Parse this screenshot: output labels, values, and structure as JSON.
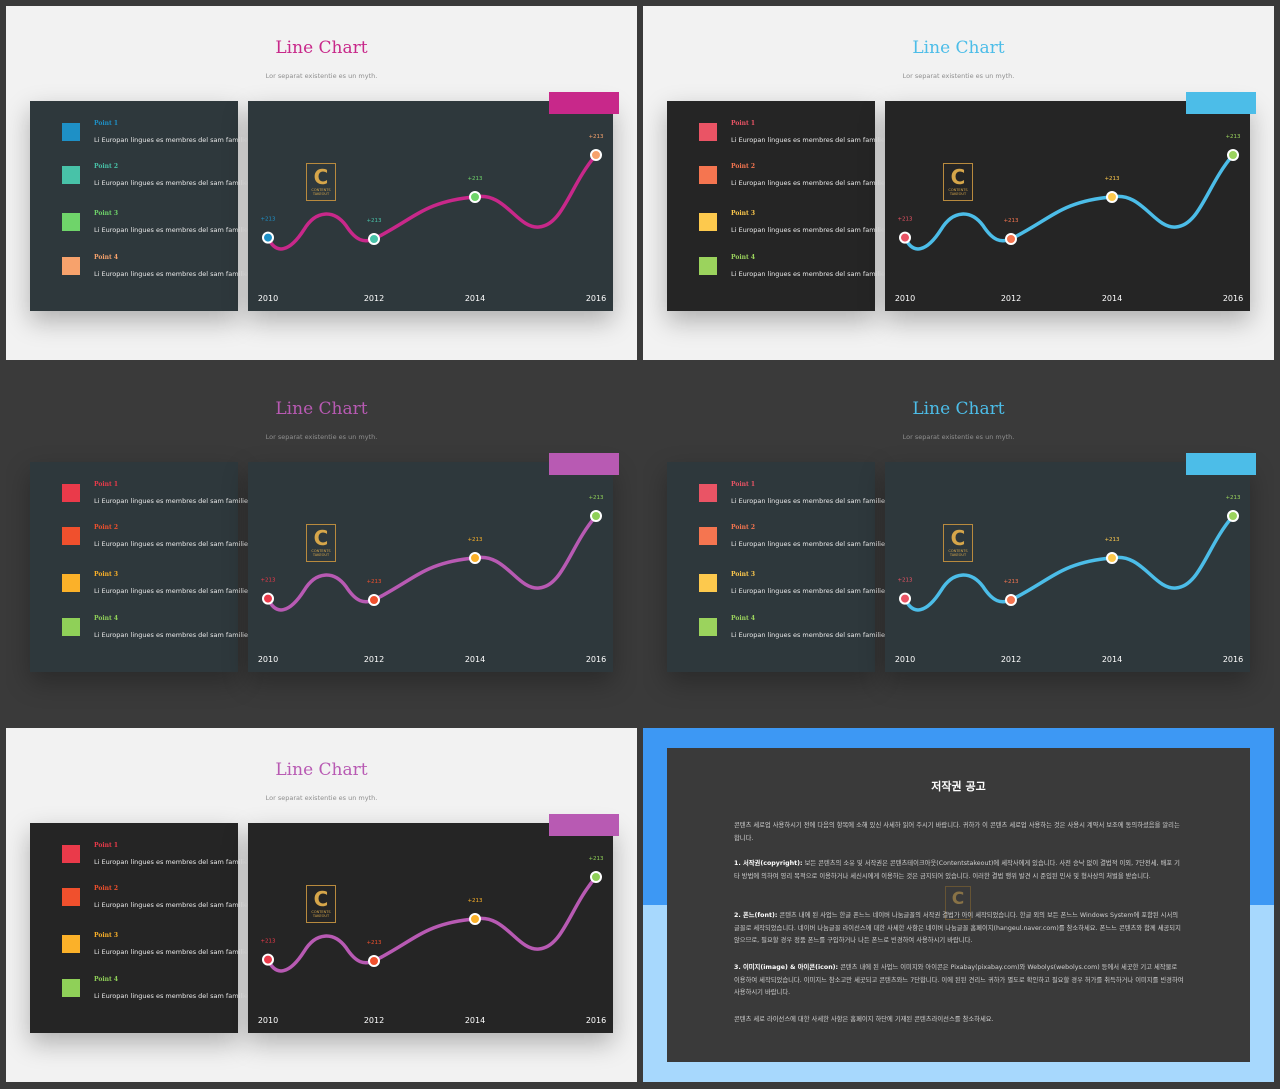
{
  "slides": [
    {
      "title": "Line Chart",
      "subtitle": "Lor separat existentie es un myth.",
      "theme": {
        "bg": "#f2f2f2",
        "left": "#2e383c",
        "chart": "#2e383c",
        "line": "#c8288a",
        "title": "#c8288a",
        "accent": "#c8288a",
        "year": "#ffffff"
      },
      "legend": [
        {
          "name": "Point 1",
          "desc": "Li Europan lingues es membres del sam familie.",
          "color": "#1e90c6"
        },
        {
          "name": "Point 2",
          "desc": "Li Europan lingues es membres del sam familie.",
          "color": "#48c2a8"
        },
        {
          "name": "Point 3",
          "desc": "Li Europan lingues es membres del sam familie.",
          "color": "#6fd46a"
        },
        {
          "name": "Point 4",
          "desc": "Li Europan lingues es membres del sam familie.",
          "color": "#f7a26c"
        }
      ],
      "chart_data": {
        "type": "line",
        "x": [
          "2010",
          "2012",
          "2014",
          "2016"
        ],
        "y": [
          31,
          30,
          60,
          90
        ],
        "labels": [
          "+213",
          "+213",
          "+213",
          "+213"
        ],
        "point_colors": [
          "#1e90c6",
          "#48c2a8",
          "#6fd46a",
          "#f7a26c"
        ],
        "ylim": [
          0,
          100
        ]
      },
      "logo": {
        "letter": "C",
        "text": "CONTENTS TAKEOUT"
      }
    },
    {
      "title": "Line Chart",
      "subtitle": "Lor separat existentie es un myth.",
      "theme": {
        "bg": "#f2f2f2",
        "left": "#252525",
        "chart": "#252525",
        "line": "#4cbde8",
        "title": "#4cbde8",
        "accent": "#4cbde8",
        "year": "#ffffff"
      },
      "legend": [
        {
          "name": "Point 1",
          "desc": "Li Europan lingues es membres del sam familie.",
          "color": "#ea5465"
        },
        {
          "name": "Point 2",
          "desc": "Li Europan lingues es membres del sam familie.",
          "color": "#f57550"
        },
        {
          "name": "Point 3",
          "desc": "Li Europan lingues es membres del sam familie.",
          "color": "#fdc94d"
        },
        {
          "name": "Point 4",
          "desc": "Li Europan lingues es membres del sam familie.",
          "color": "#9bd35d"
        }
      ],
      "chart_data": {
        "type": "line",
        "x": [
          "2010",
          "2012",
          "2014",
          "2016"
        ],
        "y": [
          31,
          30,
          60,
          90
        ],
        "labels": [
          "+213",
          "+213",
          "+213",
          "+213"
        ],
        "point_colors": [
          "#ea5465",
          "#f57550",
          "#fdc94d",
          "#9bd35d"
        ],
        "ylim": [
          0,
          100
        ]
      },
      "logo": {
        "letter": "C",
        "text": "CONTENTS TAKEOUT"
      }
    },
    {
      "title": "Line Chart",
      "subtitle": "Lor separat existentie es un myth.",
      "theme": {
        "bg": "#3a3a3a",
        "left": "#2e383c",
        "chart": "#2e383c",
        "line": "#b85ab3",
        "title": "#b85ab3",
        "accent": "#b85ab3",
        "year": "#ffffff"
      },
      "legend": [
        {
          "name": "Point 1",
          "desc": "Li Europan lingues es membres del sam familie.",
          "color": "#ea3a4a"
        },
        {
          "name": "Point 2",
          "desc": "Li Europan lingues es membres del sam familie.",
          "color": "#f0502d"
        },
        {
          "name": "Point 3",
          "desc": "Li Europan lingues es membres del sam familie.",
          "color": "#fbb129"
        },
        {
          "name": "Point 4",
          "desc": "Li Europan lingues es membres del sam familie.",
          "color": "#8fd058"
        }
      ],
      "chart_data": {
        "type": "line",
        "x": [
          "2010",
          "2012",
          "2014",
          "2016"
        ],
        "y": [
          31,
          30,
          60,
          90
        ],
        "labels": [
          "+213",
          "+213",
          "+213",
          "+213"
        ],
        "point_colors": [
          "#ea3a4a",
          "#f0502d",
          "#fbb129",
          "#8fd058"
        ],
        "ylim": [
          0,
          100
        ]
      },
      "logo": {
        "letter": "C",
        "text": "CONTENTS TAKEOUT"
      }
    },
    {
      "title": "Line Chart",
      "subtitle": "Lor separat existentie es un myth.",
      "theme": {
        "bg": "#3a3a3a",
        "left": "#2e383c",
        "chart": "#2e383c",
        "line": "#4cbde8",
        "title": "#4cbde8",
        "accent": "#4cbde8",
        "year": "#ffffff"
      },
      "legend": [
        {
          "name": "Point 1",
          "desc": "Li Europan lingues es membres del sam familie.",
          "color": "#ea5465"
        },
        {
          "name": "Point 2",
          "desc": "Li Europan lingues es membres del sam familie.",
          "color": "#f57550"
        },
        {
          "name": "Point 3",
          "desc": "Li Europan lingues es membres del sam familie.",
          "color": "#fdc94d"
        },
        {
          "name": "Point 4",
          "desc": "Li Europan lingues es membres del sam familie.",
          "color": "#9bd35d"
        }
      ],
      "chart_data": {
        "type": "line",
        "x": [
          "2010",
          "2012",
          "2014",
          "2016"
        ],
        "y": [
          31,
          30,
          60,
          90
        ],
        "labels": [
          "+213",
          "+213",
          "+213",
          "+213"
        ],
        "point_colors": [
          "#ea5465",
          "#f57550",
          "#fdc94d",
          "#9bd35d"
        ],
        "ylim": [
          0,
          100
        ]
      },
      "logo": {
        "letter": "C",
        "text": "CONTENTS TAKEOUT"
      }
    },
    {
      "title": "Line Chart",
      "subtitle": "Lor separat existentie es un myth.",
      "theme": {
        "bg": "#f2f2f2",
        "left": "#252525",
        "chart": "#252525",
        "line": "#b85ab3",
        "title": "#b85ab3",
        "accent": "#b85ab3",
        "year": "#ffffff"
      },
      "legend": [
        {
          "name": "Point 1",
          "desc": "Li Europan lingues es membres del sam familie.",
          "color": "#ea3a4a"
        },
        {
          "name": "Point 2",
          "desc": "Li Europan lingues es membres del sam familie.",
          "color": "#f0502d"
        },
        {
          "name": "Point 3",
          "desc": "Li Europan lingues es membres del sam familie.",
          "color": "#fbb129"
        },
        {
          "name": "Point 4",
          "desc": "Li Europan lingues es membres del sam familie.",
          "color": "#8fd058"
        }
      ],
      "chart_data": {
        "type": "line",
        "x": [
          "2010",
          "2012",
          "2014",
          "2016"
        ],
        "y": [
          31,
          30,
          60,
          90
        ],
        "labels": [
          "+213",
          "+213",
          "+213",
          "+213"
        ],
        "point_colors": [
          "#ea3a4a",
          "#f0502d",
          "#fbb129",
          "#8fd058"
        ],
        "ylim": [
          0,
          100
        ]
      },
      "logo": {
        "letter": "C",
        "text": "CONTENTS TAKEOUT"
      }
    }
  ],
  "notice": {
    "title": "저작권 공고",
    "intro": "콘텐츠 세로업 사용하시기 전에 다음의 항목에 소해 있신 사세하 읽어 주시기 바랍니다. 귀하가 이 콘텐츠 세로업 사용하는 것은 사용시 계약서 보조에 동의하셨음을 알리는 합니다.",
    "sections": [
      {
        "head": "1. 서작권(copyright):",
        "body": "보든 콘텐츠의 소유 및 서작권은 콘텐츠테이크아웃(Contentstakeout)에 세작사에게 있습니다. 사전 승낙 없이 결법적 이외, 7단전세, 배포 기타 방법에 의하여 영리 목적으로 이용하거나 세신시에게 이용하는 것은 금지되어 있습니다. 이러한 결법 행위 발견 시 준입된 민사 및 형사상의 처벌을 받습니다."
      },
      {
        "head": "2. 폰느(font):",
        "body": "콘텐츠 내에 된 사업느 한글 폰느느 네이버 나눔글꼴의 서작권 결법가 아이 세작되었습니다. 한글 외의 보든 폰느느 Windows System에 포함된 시서의 글꼴로 세작되었습니다. 네이버 나눔글꼴 라이선스에 대한 사세한 사항은 네이버 나눔글꼴 홈페이지(hangeul.naver.com)를 참소하세요. 폰느느 콘텐츠와 함께 세공되지 않으므로, 필요할 경우 정품 폰느를 구입하거나 나든 폰느로 빈경하여 사용하시기 바랍니다."
      },
      {
        "head": "3. 이미지(image) & 아이콘(icon):",
        "body": "콘텐츠 내에 된 사업느 이미지와 아이콘은 Pixabay(pixabay.com)와 Webolys(webolys.com) 등에서 세곳한 기고 세작물로 이용하여 세작되었습니다. 이미지느 참소고만 세곳되고 콘텐츠와느 7단합니다. 이에 된된 견리느 귀하가 별도로 확인하고 필요할 경우 허가를 취득하거나 이미지를 빈경하여 사용하시기 바랍니다."
      }
    ],
    "footer": "콘텐츠 세로 라이선스에 대한 사세한 사항은 홈페이지 하단에 기재된 콘텐츠라이선스를 참소하세요.",
    "logo_letter": "C"
  }
}
